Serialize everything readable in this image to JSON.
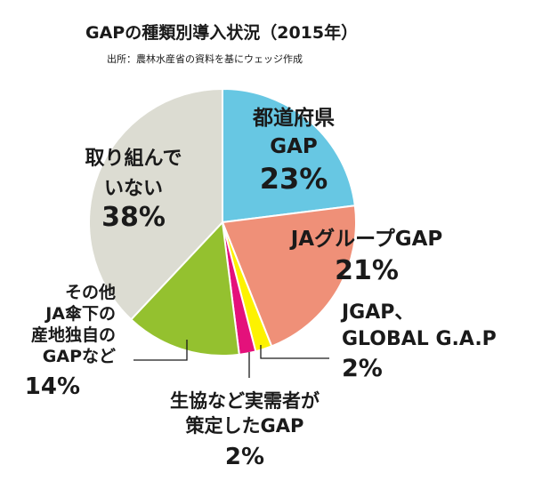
{
  "title": "GAPの種類別導入状況（2015年）",
  "source": "出所：農林水産省の資料を基にウェッジ作成",
  "chart_data": {
    "type": "pie",
    "title": "GAPの種類別導入状況（2015年）",
    "slices": [
      {
        "label_lines": [
          "都道府県",
          "GAP"
        ],
        "value": 23,
        "pct_text": "23%",
        "color": "#67c7e3"
      },
      {
        "label_lines": [
          "JAグループGAP"
        ],
        "value": 21,
        "pct_text": "21%",
        "color": "#ef9078"
      },
      {
        "label_lines": [
          "JGAP、",
          "GLOBAL G.A.P"
        ],
        "value": 2,
        "pct_text": "2%",
        "color": "#fdf200"
      },
      {
        "label_lines": [
          "生協など実需者が",
          "策定したGAP"
        ],
        "value": 2,
        "pct_text": "2%",
        "color": "#e4117b"
      },
      {
        "label_lines": [
          "その他",
          "JA傘下の",
          "産地独自の",
          "GAPなど"
        ],
        "value": 14,
        "pct_text": "14%",
        "color": "#94c12f"
      },
      {
        "label_lines": [
          "取り組んで",
          "いない"
        ],
        "value": 38,
        "pct_text": "38%",
        "color": "#dcdcd2"
      }
    ]
  }
}
